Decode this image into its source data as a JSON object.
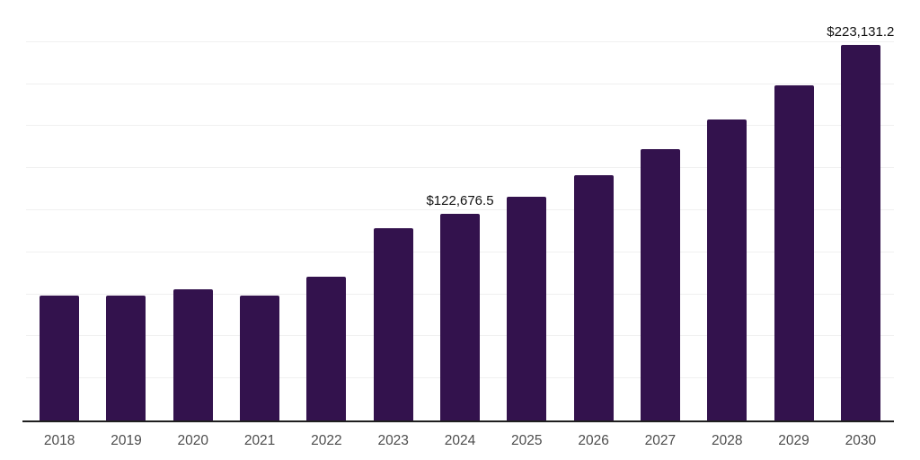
{
  "chart_data": {
    "type": "bar",
    "categories": [
      "2018",
      "2019",
      "2020",
      "2021",
      "2022",
      "2023",
      "2024",
      "2025",
      "2026",
      "2027",
      "2028",
      "2029",
      "2030"
    ],
    "series": [
      {
        "name": "market-value",
        "values": [
          74000,
          74500,
          78100,
          74000,
          85500,
          114300,
          122676.5,
          132800,
          146100,
          161500,
          178800,
          199100,
          223131.2
        ]
      }
    ],
    "data_labels": [
      {
        "category": "2024",
        "text": "$122,676.5"
      },
      {
        "category": "2030",
        "text": "$223,131.2"
      }
    ],
    "ylim": [
      0,
      250000
    ],
    "grid_step": 25000,
    "grid": true,
    "legend": false,
    "colors": {
      "bar": "#33124d",
      "axis_line": "#1f1f1f",
      "gridline": "#f0f0f0",
      "data_label_text": "#111111",
      "tick_text": "#4d4d4d",
      "background": "#ffffff"
    }
  }
}
